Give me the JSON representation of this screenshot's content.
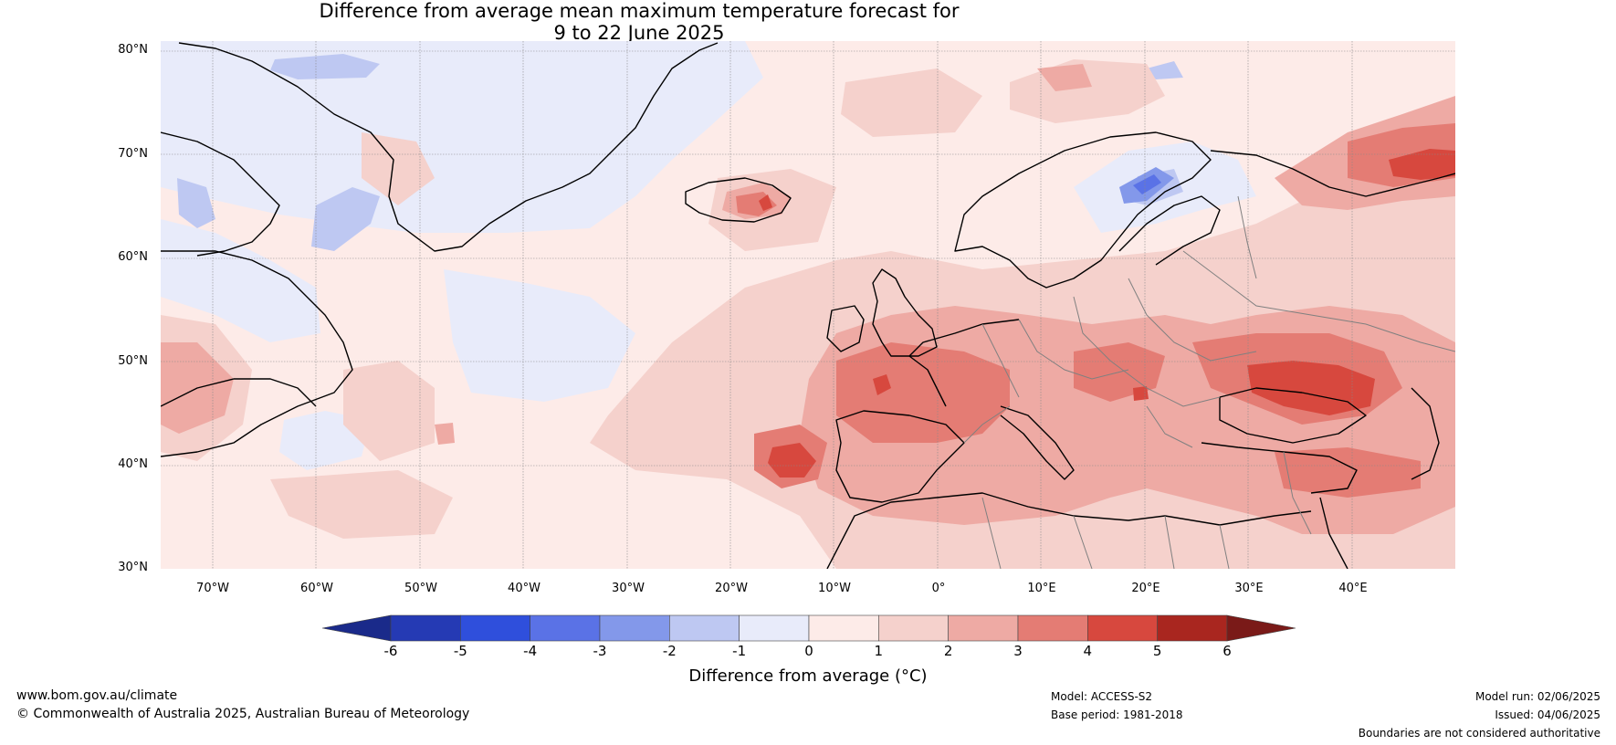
{
  "title": {
    "line1": "Difference from average mean maximum temperature forecast for",
    "line2": "9 to 22 June 2025"
  },
  "map": {
    "lat_labels": [
      "80°N",
      "70°N",
      "60°N",
      "50°N",
      "40°N",
      "30°N"
    ],
    "lon_labels": [
      "70°W",
      "60°W",
      "50°W",
      "40°W",
      "30°W",
      "20°W",
      "10°W",
      "0°",
      "10°E",
      "20°E",
      "30°E",
      "40°E"
    ],
    "extent": {
      "lon_min": -75,
      "lon_max": 50,
      "lat_min": 30,
      "lat_max": 81
    },
    "colors": {
      "coast": "#000000",
      "border": "#808080",
      "grid": "#888888"
    }
  },
  "colorbar": {
    "title": "Difference from average (°C)",
    "ticks": [
      "-6",
      "-5",
      "-4",
      "-3",
      "-2",
      "-1",
      "0",
      "1",
      "2",
      "3",
      "4",
      "5",
      "6"
    ],
    "below_color": "#1a2a8a",
    "above_color": "#7a1a18",
    "colors": [
      "#253ab4",
      "#2f4fdc",
      "#5a72e6",
      "#8398ea",
      "#bec8f2",
      "#e8ebfa",
      "#fdebe8",
      "#f5d1cc",
      "#eeaaa4",
      "#e47c74",
      "#d7483e",
      "#a9261f"
    ]
  },
  "footer": {
    "website": "www.bom.gov.au/climate",
    "copyright": "© Commonwealth of Australia 2025, Australian Bureau of Meteorology",
    "model": "Model: ACCESS-S2",
    "base_period": "Base period: 1981-2018",
    "model_run": "Model run: 02/06/2025",
    "issued": "Issued: 04/06/2025",
    "disclaimer": "Boundaries are not considered authoritative"
  }
}
